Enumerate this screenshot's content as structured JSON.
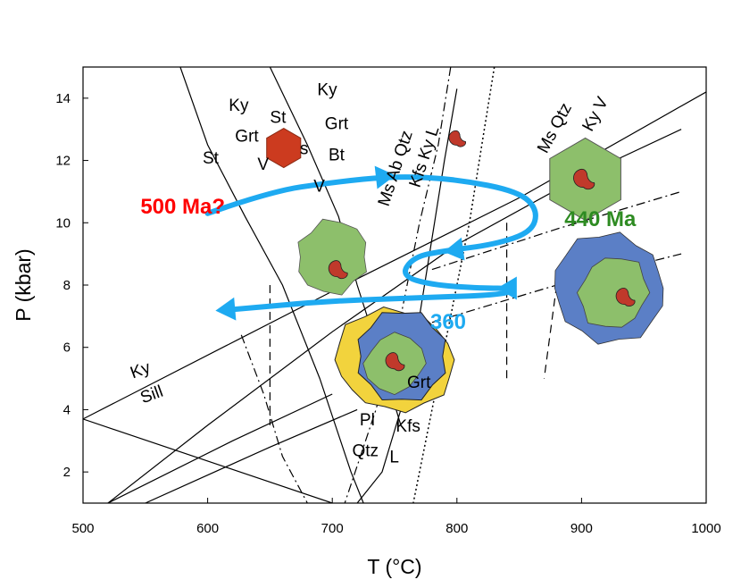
{
  "chart_data": {
    "type": "line",
    "title": "",
    "xlabel": "T (°C)",
    "ylabel": "P (kbar)",
    "xlim": [
      500,
      1000
    ],
    "ylim": [
      1,
      15
    ],
    "xticks": [
      500,
      600,
      700,
      800,
      900,
      1000
    ],
    "yticks": [
      2,
      4,
      6,
      8,
      10,
      12,
      14
    ],
    "reaction_curves": [
      {
        "name": "st-out",
        "style": "solid",
        "points": [
          [
            578,
            15
          ],
          [
            600,
            12.5
          ],
          [
            630,
            10.2
          ],
          [
            660,
            8
          ],
          [
            690,
            5
          ],
          [
            715,
            2
          ],
          [
            725,
            1
          ]
        ]
      },
      {
        "name": "grt-bt-v",
        "style": "solid",
        "points": [
          [
            650,
            15
          ],
          [
            680,
            12.5
          ],
          [
            705,
            10.2
          ],
          [
            720,
            8
          ],
          [
            740,
            5.5
          ],
          [
            755,
            3.5
          ]
        ]
      },
      {
        "name": "ms-ab-qtz",
        "style": "dashdot",
        "points": [
          [
            795,
            15
          ],
          [
            785,
            12.5
          ],
          [
            770,
            10
          ],
          [
            755,
            7
          ],
          [
            735,
            4
          ],
          [
            710,
            1
          ]
        ]
      },
      {
        "name": "ms-qtz-melt",
        "style": "solid",
        "points": [
          [
            800,
            14.3
          ],
          [
            790,
            12
          ],
          [
            782,
            10
          ],
          [
            770,
            7
          ],
          [
            755,
            4
          ],
          [
            740,
            2
          ],
          [
            720,
            1
          ]
        ]
      },
      {
        "name": "wet-solidus",
        "style": "dotted",
        "points": [
          [
            830,
            15
          ],
          [
            820,
            12.5
          ],
          [
            810,
            10
          ],
          [
            795,
            7
          ],
          [
            780,
            4
          ],
          [
            765,
            1
          ]
        ]
      },
      {
        "name": "kyanite-sillimanite",
        "style": "solid",
        "points": [
          [
            500,
            3.7
          ],
          [
            700,
            7.8
          ],
          [
            850,
            10.8
          ],
          [
            1000,
            14.2
          ]
        ]
      },
      {
        "name": "andalusite-sillimanite",
        "style": "solid",
        "points": [
          [
            500,
            3.7
          ],
          [
            700,
            1
          ]
        ]
      },
      {
        "name": "ms-qtz-kfs",
        "style": "solid",
        "points": [
          [
            520,
            1
          ],
          [
            600,
            3.5
          ],
          [
            700,
            6.5
          ],
          [
            800,
            9.3
          ],
          [
            900,
            11.5
          ],
          [
            980,
            13
          ]
        ]
      },
      {
        "name": "bt-melt-1",
        "style": "dashdot",
        "points": [
          [
            780,
            8.5
          ],
          [
            880,
            9.8
          ],
          [
            980,
            11
          ]
        ]
      },
      {
        "name": "bt-melt-2",
        "style": "dashdot",
        "points": [
          [
            780,
            6.8
          ],
          [
            880,
            8
          ],
          [
            980,
            9
          ]
        ]
      },
      {
        "name": "st-ky-dehydration",
        "style": "dashdot",
        "points": [
          [
            627,
            6.4
          ],
          [
            645,
            4.5
          ],
          [
            660,
            2.5
          ],
          [
            680,
            1
          ]
        ]
      },
      {
        "name": "vertical-dashed-1",
        "style": "dashed",
        "points": [
          [
            650,
            8
          ],
          [
            650,
            3.5
          ]
        ]
      },
      {
        "name": "vertical-dashed-2",
        "style": "dashed",
        "points": [
          [
            840,
            10
          ],
          [
            840,
            5
          ]
        ]
      },
      {
        "name": "vertical-dashed-3",
        "style": "dashed",
        "points": [
          [
            880,
            8
          ],
          [
            870,
            5
          ]
        ]
      },
      {
        "name": "low-p-1",
        "style": "solid",
        "points": [
          [
            520,
            1
          ],
          [
            620,
            3
          ],
          [
            700,
            4.5
          ]
        ]
      },
      {
        "name": "low-p-2",
        "style": "solid",
        "points": [
          [
            550,
            1
          ],
          [
            650,
            2.8
          ],
          [
            720,
            4
          ]
        ]
      }
    ],
    "pt_path": {
      "color": "#1eaaf1",
      "points": [
        [
          600,
          10.3
        ],
        [
          650,
          11
        ],
        [
          700,
          11.3
        ],
        [
          750,
          11.5
        ],
        [
          800,
          11.4
        ],
        [
          850,
          11
        ],
        [
          865,
          10.4
        ],
        [
          860,
          9.7
        ],
        [
          830,
          9.3
        ],
        [
          790,
          9.1
        ],
        [
          765,
          8.9
        ],
        [
          755,
          8.3
        ],
        [
          780,
          8
        ],
        [
          820,
          7.9
        ],
        [
          845,
          7.9
        ],
        [
          840,
          7.7
        ],
        [
          780,
          7.6
        ],
        [
          700,
          7.5
        ],
        [
          615,
          7.2
        ]
      ],
      "arrowheads": [
        [
          745,
          11.5
        ],
        [
          795,
          9.1
        ],
        [
          838,
          7.9
        ],
        [
          612,
          7.2
        ]
      ]
    },
    "annotations": [
      {
        "text": "500 Ma?",
        "x": 580,
        "y": 10.3,
        "color": "#ff0000"
      },
      {
        "text": "440 Ma",
        "x": 915,
        "y": 9.9,
        "color": "#2e8b22"
      },
      {
        "text": "360",
        "x": 793,
        "y": 6.6,
        "color": "#1eaaf1"
      }
    ],
    "field_labels": [
      {
        "text": "Ky",
        "x": 617,
        "y": 13.6,
        "rotate": 0
      },
      {
        "text": "Grt",
        "x": 622,
        "y": 12.6,
        "rotate": 0
      },
      {
        "text": "St",
        "x": 596,
        "y": 11.9,
        "rotate": 0
      },
      {
        "text": "V",
        "x": 640,
        "y": 11.7,
        "rotate": 0
      },
      {
        "text": "St",
        "x": 650,
        "y": 13.2,
        "rotate": 0
      },
      {
        "text": "s",
        "x": 674,
        "y": 12.2,
        "rotate": 0
      },
      {
        "text": "Ky",
        "x": 688,
        "y": 14.1,
        "rotate": 0
      },
      {
        "text": "Grt",
        "x": 694,
        "y": 13.0,
        "rotate": 0
      },
      {
        "text": "Bt",
        "x": 697,
        "y": 12.0,
        "rotate": 0
      },
      {
        "text": "V",
        "x": 685,
        "y": 11.0,
        "rotate": 0
      },
      {
        "text": "Ms Ab Qtz",
        "x": 745,
        "y": 10.5,
        "rotate": -72
      },
      {
        "text": "Kfs Ky L",
        "x": 770,
        "y": 11.1,
        "rotate": -72
      },
      {
        "text": "Ms Qtz",
        "x": 872,
        "y": 12.2,
        "rotate": -62
      },
      {
        "text": "Ky V",
        "x": 908,
        "y": 12.9,
        "rotate": -62
      },
      {
        "text": "Ky",
        "x": 540,
        "y": 5.0,
        "rotate": -20
      },
      {
        "text": "Sill",
        "x": 548,
        "y": 4.2,
        "rotate": -20
      },
      {
        "text": "Grt",
        "x": 760,
        "y": 4.7,
        "rotate": 0
      },
      {
        "text": "Pl",
        "x": 722,
        "y": 3.5,
        "rotate": 0
      },
      {
        "text": "Kfs",
        "x": 751,
        "y": 3.3,
        "rotate": 0
      },
      {
        "text": "Qtz",
        "x": 716,
        "y": 2.5,
        "rotate": 0
      },
      {
        "text": "L",
        "x": 746,
        "y": 2.3,
        "rotate": 0
      }
    ],
    "inclusion_sketches": [
      {
        "name": "st-hexagon",
        "style": "red-hexagon",
        "x": 661,
        "y": 12.4,
        "size": 0.5
      },
      {
        "name": "melt-droplet",
        "style": "droplet",
        "x": 800,
        "y": 12.7,
        "size": 0.8
      },
      {
        "name": "garnet-green",
        "style": "green-crystal",
        "x": 700,
        "y": 8.9,
        "size": 1
      },
      {
        "name": "garnet-hexagon",
        "style": "green-hexagon",
        "x": 903,
        "y": 11.4,
        "size": 1
      },
      {
        "name": "garnet-blue-rim",
        "style": "blue-rim",
        "x": 922,
        "y": 7.9,
        "size": 1
      },
      {
        "name": "garnet-yellow",
        "style": "yellow-rim",
        "x": 750,
        "y": 5.6,
        "size": 1
      }
    ]
  }
}
